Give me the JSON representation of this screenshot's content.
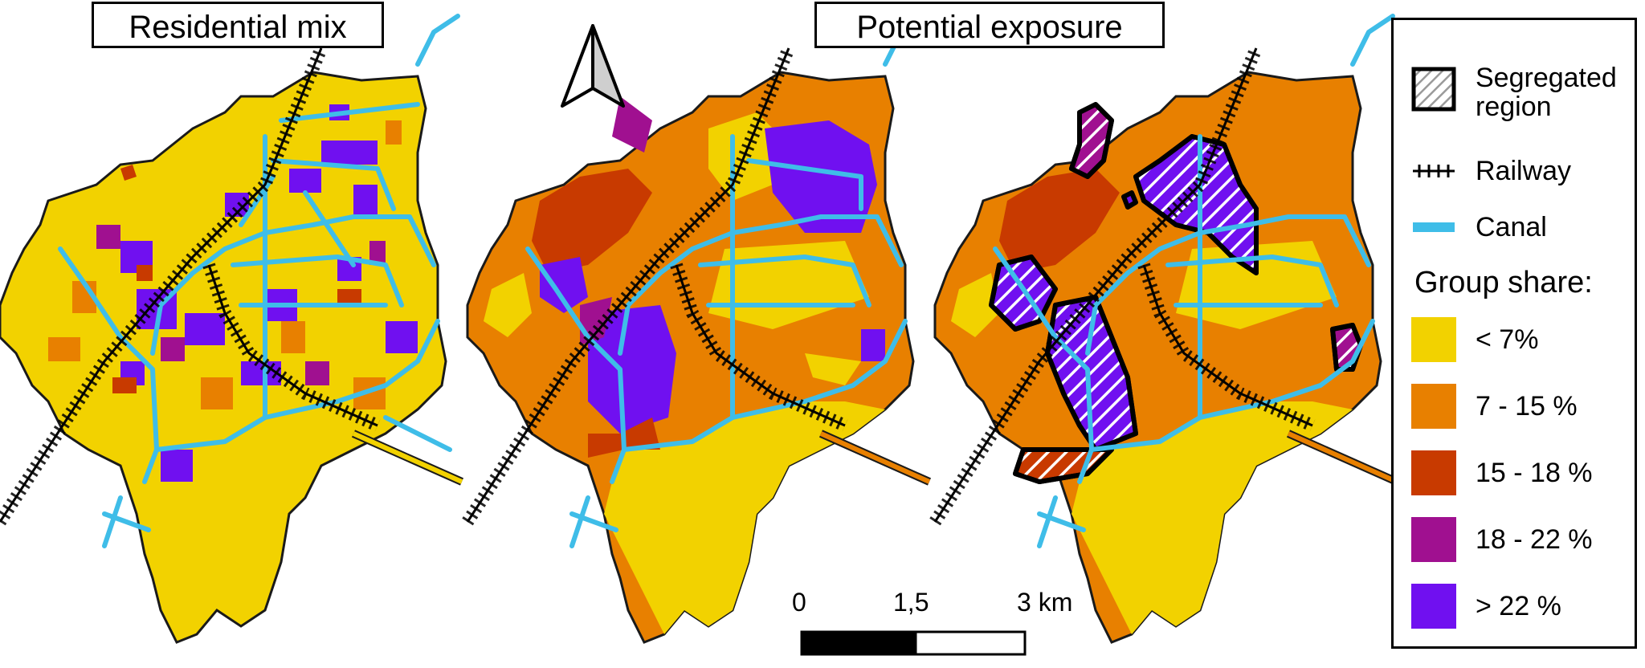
{
  "panels": {
    "left_title": "Residential mix",
    "center_title": "Potential exposure"
  },
  "legend": {
    "segregated_label_line1": "Segregated",
    "segregated_label_line2": "region",
    "railway_label": "Railway",
    "canal_label": "Canal",
    "group_share_heading": "Group share:",
    "classes": [
      {
        "label": "< 7%",
        "color": "#f2d200"
      },
      {
        "label": "7 - 15 %",
        "color": "#e88000"
      },
      {
        "label": "15 - 18 %",
        "color": "#c83a00"
      },
      {
        "label": "18 - 22 %",
        "color": "#a01090"
      },
      {
        "label": "> 22 %",
        "color": "#7010f0"
      }
    ]
  },
  "scale_bar": {
    "tick_0": "0",
    "tick_mid": "1,5",
    "tick_end": "3 km"
  },
  "colors": {
    "canal": "#3fbde8",
    "railway": "#000000",
    "outline": "#1a1a1a"
  },
  "icons": {
    "north_arrow": "north-arrow-icon"
  }
}
